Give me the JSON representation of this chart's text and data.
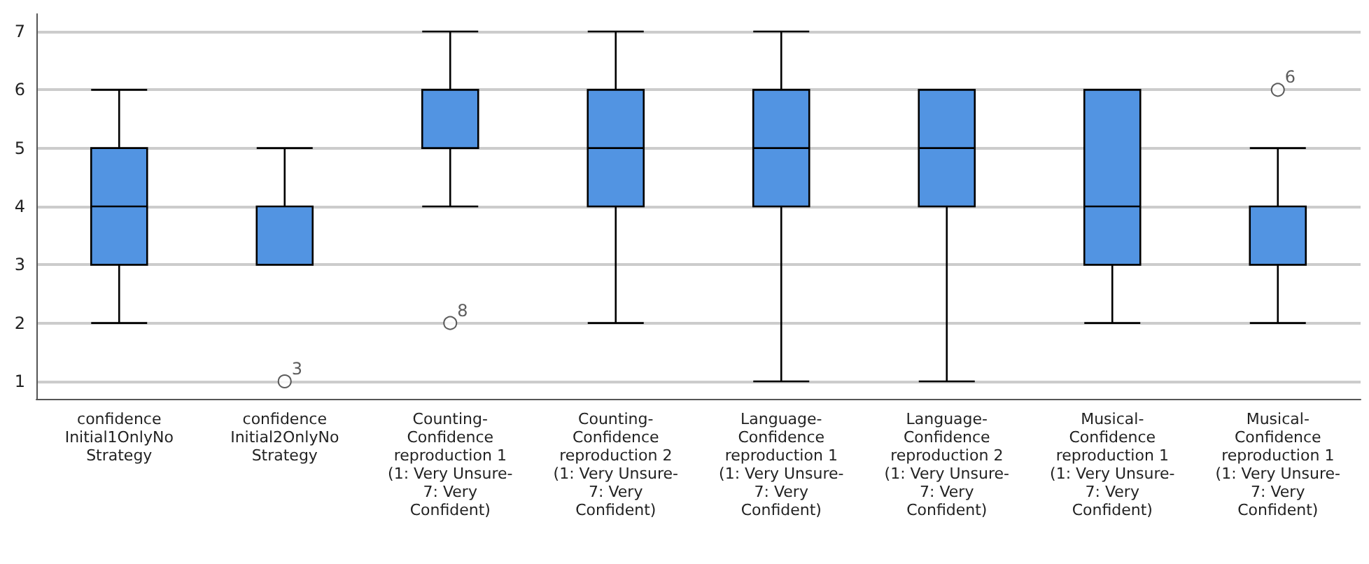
{
  "chart_data": {
    "type": "box",
    "categories": [
      "confidence Initial1OnlyNo Strategy",
      "confidence Initial2OnlyNo Strategy",
      "Counting-Confidence reproduction 1 (1: Very Unsure-7: Very Confident)",
      "Counting-Confidence reproduction 2 (1: Very Unsure-7: Very Confident)",
      "Language-Confidence reproduction 1 (1: Very Unsure-7: Very Confident)",
      "Language-Confidence reproduction 2 (1: Very Unsure-7: Very Confident)",
      "Musical-Confidence reproduction 1 (1: Very Unsure-7: Very Confident)",
      "Musical-Confidence reproduction 1 (1: Very Unsure-7: Very Confident)"
    ],
    "boxes": [
      {
        "low": 2,
        "q1": 3,
        "median": 4,
        "q3": 5,
        "high": 6
      },
      {
        "low": 3,
        "q1": 3,
        "median": 4,
        "q3": 4,
        "high": 5,
        "outliers": [
          1
        ]
      },
      {
        "low": 4,
        "q1": 5,
        "median": 5,
        "q3": 6,
        "high": 7,
        "outliers": [
          2
        ]
      },
      {
        "low": 2,
        "q1": 4,
        "median": 5,
        "q3": 6,
        "high": 7
      },
      {
        "low": 1,
        "q1": 4,
        "median": 5,
        "q3": 6,
        "high": 7
      },
      {
        "low": 1,
        "q1": 4,
        "median": 5,
        "q3": 6,
        "high": 6
      },
      {
        "low": 2,
        "q1": 3,
        "median": 4,
        "q3": 6,
        "high": 6
      },
      {
        "low": 2,
        "q1": 3,
        "median": 3,
        "q3": 4,
        "high": 5,
        "outliers": [
          6
        ]
      }
    ],
    "color": "#5294e2",
    "annotations": [
      "3",
      "8",
      "6"
    ],
    "ylim": [
      0.7,
      7.3
    ],
    "yticks": [
      1,
      2,
      3,
      4,
      5,
      6,
      7
    ],
    "grid": "y"
  }
}
